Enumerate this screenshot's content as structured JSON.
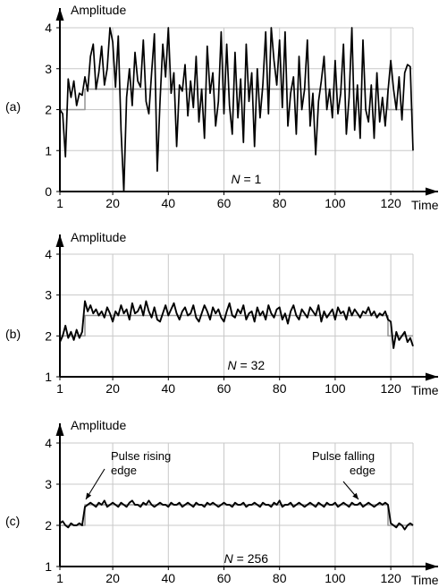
{
  "chart_data": [
    {
      "type": "line",
      "panel_label": "(a)",
      "ylabel": "Amplitude",
      "xlabel": "Time",
      "annotation_text": "N = 1",
      "xlim": [
        1,
        128
      ],
      "ylim": [
        0,
        4
      ],
      "xticks": [
        1,
        20,
        40,
        60,
        80,
        100,
        120
      ],
      "yticks": [
        0,
        1,
        2,
        3,
        4
      ],
      "grid": true,
      "series": [
        {
          "role": "clean pulse",
          "color": "#9a9a9a",
          "x": [
            1,
            10,
            10,
            119,
            119,
            128
          ],
          "y": [
            2,
            2,
            2.5,
            2.5,
            2,
            2
          ]
        },
        {
          "role": "signal",
          "color": "#000000",
          "x": [
            1,
            2,
            3,
            4,
            5,
            6,
            7,
            8,
            9,
            10,
            11,
            12,
            13,
            14,
            15,
            16,
            17,
            18,
            19,
            20,
            21,
            22,
            23,
            24,
            25,
            26,
            27,
            28,
            29,
            30,
            31,
            32,
            33,
            34,
            35,
            36,
            37,
            38,
            39,
            40,
            41,
            42,
            43,
            44,
            45,
            46,
            47,
            48,
            49,
            50,
            51,
            52,
            53,
            54,
            55,
            56,
            57,
            58,
            59,
            60,
            61,
            62,
            63,
            64,
            65,
            66,
            67,
            68,
            69,
            70,
            71,
            72,
            73,
            74,
            75,
            76,
            77,
            78,
            79,
            80,
            81,
            82,
            83,
            84,
            85,
            86,
            87,
            88,
            89,
            90,
            91,
            92,
            93,
            94,
            95,
            96,
            97,
            98,
            99,
            100,
            101,
            102,
            103,
            104,
            105,
            106,
            107,
            108,
            109,
            110,
            111,
            112,
            113,
            114,
            115,
            116,
            117,
            118,
            119,
            120,
            121,
            122,
            123,
            124,
            125,
            126,
            127,
            128
          ],
          "y": [
            2.0,
            1.9,
            0.85,
            2.75,
            2.3,
            2.7,
            2.1,
            2.4,
            2.35,
            2.8,
            2.45,
            3.3,
            3.6,
            2.5,
            2.9,
            3.55,
            2.6,
            3.0,
            4.0,
            3.65,
            2.55,
            3.8,
            1.5,
            0.0,
            2.3,
            3.0,
            2.1,
            3.4,
            2.7,
            2.55,
            3.7,
            2.2,
            1.9,
            2.9,
            3.85,
            0.5,
            2.2,
            3.6,
            2.8,
            4.0,
            2.4,
            2.9,
            1.1,
            2.6,
            2.45,
            3.1,
            1.85,
            2.7,
            2.05,
            3.3,
            1.7,
            2.5,
            1.3,
            3.55,
            2.4,
            2.9,
            1.6,
            2.2,
            3.9,
            1.9,
            3.6,
            2.1,
            1.4,
            3.4,
            1.8,
            2.75,
            1.2,
            3.6,
            2.2,
            2.9,
            1.1,
            3.0,
            1.8,
            2.6,
            3.9,
            1.9,
            4.0,
            3.2,
            2.6,
            3.7,
            2.05,
            3.9,
            1.6,
            2.4,
            2.8,
            1.4,
            3.3,
            2.0,
            2.5,
            3.7,
            1.6,
            2.4,
            0.9,
            2.2,
            2.7,
            3.3,
            2.0,
            2.5,
            1.8,
            3.2,
            1.9,
            2.4,
            3.6,
            1.4,
            2.3,
            4.0,
            1.5,
            2.6,
            1.3,
            3.7,
            2.0,
            1.7,
            2.6,
            1.3,
            2.9,
            1.7,
            2.3,
            1.6,
            2.45,
            3.2,
            2.5,
            2.0,
            2.8,
            1.75,
            2.9,
            3.1,
            3.05,
            1.0
          ]
        }
      ]
    },
    {
      "type": "line",
      "panel_label": "(b)",
      "ylabel": "Amplitude",
      "xlabel": "Time",
      "annotation_text": "N = 32",
      "xlim": [
        1,
        128
      ],
      "ylim": [
        1,
        4
      ],
      "xticks": [
        1,
        20,
        40,
        60,
        80,
        100,
        120
      ],
      "yticks": [
        1,
        2,
        3,
        4
      ],
      "grid": true,
      "series": [
        {
          "role": "clean pulse",
          "color": "#9a9a9a",
          "x": [
            1,
            10,
            10,
            119,
            119,
            128
          ],
          "y": [
            2,
            2,
            2.5,
            2.5,
            2,
            2
          ]
        },
        {
          "role": "signal",
          "color": "#000000",
          "x": [
            1,
            2,
            3,
            4,
            5,
            6,
            7,
            8,
            9,
            10,
            11,
            12,
            13,
            14,
            15,
            16,
            17,
            18,
            19,
            20,
            21,
            22,
            23,
            24,
            25,
            26,
            27,
            28,
            29,
            30,
            31,
            32,
            33,
            34,
            35,
            36,
            37,
            38,
            39,
            40,
            41,
            42,
            43,
            44,
            45,
            46,
            47,
            48,
            49,
            50,
            51,
            52,
            53,
            54,
            55,
            56,
            57,
            58,
            59,
            60,
            61,
            62,
            63,
            64,
            65,
            66,
            67,
            68,
            69,
            70,
            71,
            72,
            73,
            74,
            75,
            76,
            77,
            78,
            79,
            80,
            81,
            82,
            83,
            84,
            85,
            86,
            87,
            88,
            89,
            90,
            91,
            92,
            93,
            94,
            95,
            96,
            97,
            98,
            99,
            100,
            101,
            102,
            103,
            104,
            105,
            106,
            107,
            108,
            109,
            110,
            111,
            112,
            113,
            114,
            115,
            116,
            117,
            118,
            119,
            120,
            121,
            122,
            123,
            124,
            125,
            126,
            127,
            128
          ],
          "y": [
            1.85,
            2.0,
            2.25,
            1.95,
            2.1,
            1.9,
            2.15,
            1.95,
            2.1,
            2.85,
            2.6,
            2.75,
            2.55,
            2.65,
            2.5,
            2.6,
            2.45,
            2.7,
            2.55,
            2.35,
            2.6,
            2.5,
            2.75,
            2.55,
            2.65,
            2.4,
            2.8,
            2.55,
            2.6,
            2.75,
            2.5,
            2.85,
            2.6,
            2.45,
            2.7,
            2.4,
            2.35,
            2.55,
            2.75,
            2.5,
            2.65,
            2.8,
            2.55,
            2.4,
            2.6,
            2.7,
            2.5,
            2.55,
            2.75,
            2.45,
            2.35,
            2.55,
            2.75,
            2.6,
            2.4,
            2.7,
            2.55,
            2.65,
            2.45,
            2.35,
            2.6,
            2.8,
            2.5,
            2.45,
            2.65,
            2.55,
            2.75,
            2.4,
            2.55,
            2.6,
            2.35,
            2.7,
            2.5,
            2.6,
            2.4,
            2.75,
            2.55,
            2.45,
            2.65,
            2.7,
            2.4,
            2.55,
            2.3,
            2.6,
            2.75,
            2.5,
            2.4,
            2.65,
            2.55,
            2.45,
            2.7,
            2.6,
            2.5,
            2.75,
            2.35,
            2.6,
            2.45,
            2.55,
            2.65,
            2.4,
            2.7,
            2.55,
            2.6,
            2.4,
            2.7,
            2.5,
            2.65,
            2.55,
            2.45,
            2.6,
            2.55,
            2.7,
            2.5,
            2.6,
            2.45,
            2.55,
            2.5,
            2.6,
            2.4,
            2.35,
            1.7,
            2.1,
            1.9,
            2.0,
            2.1,
            1.85,
            1.95,
            1.75
          ]
        }
      ]
    },
    {
      "type": "line",
      "panel_label": "(c)",
      "ylabel": "Amplitude",
      "xlabel": "Time",
      "annotation_text": "N = 256",
      "callouts": [
        "Pulse rising\nedge",
        "Pulse falling\nedge"
      ],
      "xlim": [
        1,
        128
      ],
      "ylim": [
        1,
        4
      ],
      "xticks": [
        1,
        20,
        40,
        60,
        80,
        100,
        120
      ],
      "yticks": [
        1,
        2,
        3,
        4
      ],
      "grid": true,
      "series": [
        {
          "role": "clean pulse",
          "color": "#9a9a9a",
          "x": [
            1,
            10,
            10,
            119,
            119,
            128
          ],
          "y": [
            2,
            2,
            2.5,
            2.5,
            2,
            2
          ]
        },
        {
          "role": "signal",
          "color": "#000000",
          "x": [
            1,
            2,
            3,
            4,
            5,
            6,
            7,
            8,
            9,
            10,
            11,
            12,
            13,
            14,
            15,
            16,
            17,
            18,
            19,
            20,
            21,
            22,
            23,
            24,
            25,
            26,
            27,
            28,
            29,
            30,
            31,
            32,
            33,
            34,
            35,
            36,
            37,
            38,
            39,
            40,
            41,
            42,
            43,
            44,
            45,
            46,
            47,
            48,
            49,
            50,
            51,
            52,
            53,
            54,
            55,
            56,
            57,
            58,
            59,
            60,
            61,
            62,
            63,
            64,
            65,
            66,
            67,
            68,
            69,
            70,
            71,
            72,
            73,
            74,
            75,
            76,
            77,
            78,
            79,
            80,
            81,
            82,
            83,
            84,
            85,
            86,
            87,
            88,
            89,
            90,
            91,
            92,
            93,
            94,
            95,
            96,
            97,
            98,
            99,
            100,
            101,
            102,
            103,
            104,
            105,
            106,
            107,
            108,
            109,
            110,
            111,
            112,
            113,
            114,
            115,
            116,
            117,
            118,
            119,
            120,
            121,
            122,
            123,
            124,
            125,
            126,
            127,
            128
          ],
          "y": [
            2.05,
            2.1,
            2.0,
            1.95,
            2.05,
            2.0,
            2.0,
            2.05,
            2.0,
            2.45,
            2.5,
            2.55,
            2.5,
            2.45,
            2.55,
            2.5,
            2.6,
            2.45,
            2.5,
            2.55,
            2.5,
            2.45,
            2.55,
            2.5,
            2.45,
            2.55,
            2.6,
            2.5,
            2.5,
            2.45,
            2.55,
            2.5,
            2.6,
            2.5,
            2.45,
            2.5,
            2.55,
            2.5,
            2.5,
            2.45,
            2.55,
            2.5,
            2.5,
            2.55,
            2.45,
            2.5,
            2.55,
            2.5,
            2.45,
            2.55,
            2.5,
            2.5,
            2.45,
            2.55,
            2.5,
            2.55,
            2.5,
            2.45,
            2.5,
            2.55,
            2.5,
            2.5,
            2.45,
            2.55,
            2.5,
            2.5,
            2.55,
            2.45,
            2.5,
            2.5,
            2.55,
            2.5,
            2.45,
            2.55,
            2.5,
            2.5,
            2.45,
            2.55,
            2.5,
            2.6,
            2.45,
            2.5,
            2.5,
            2.55,
            2.45,
            2.5,
            2.55,
            2.5,
            2.45,
            2.5,
            2.55,
            2.5,
            2.45,
            2.55,
            2.5,
            2.45,
            2.55,
            2.5,
            2.5,
            2.55,
            2.45,
            2.5,
            2.55,
            2.5,
            2.45,
            2.55,
            2.5,
            2.5,
            2.55,
            2.45,
            2.5,
            2.55,
            2.5,
            2.45,
            2.5,
            2.55,
            2.5,
            2.55,
            2.5,
            2.05,
            2.0,
            1.95,
            2.05,
            2.0,
            1.9,
            2.0,
            2.05,
            2.0
          ]
        }
      ]
    }
  ]
}
